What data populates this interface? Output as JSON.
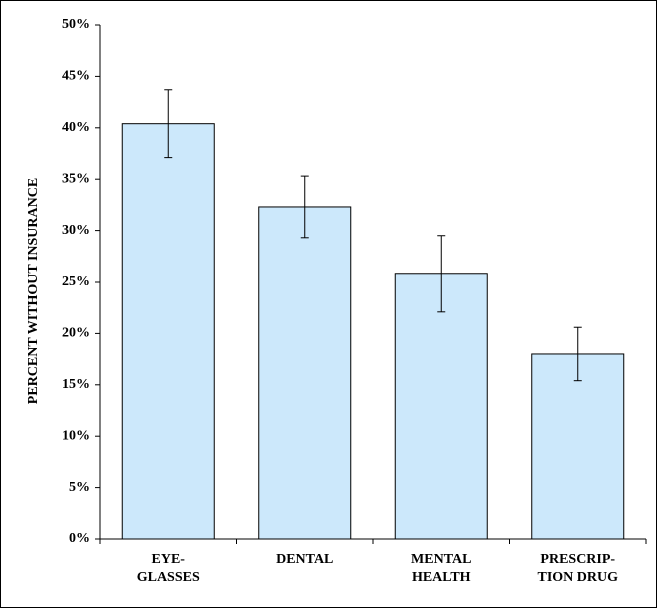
{
  "chart_data": {
    "type": "bar",
    "y_label": "PERCENT WITHOUT INSURANCE",
    "categories": [
      "EYE-\nGLASSES",
      "DENTAL",
      "MENTAL\nHEALTH",
      "PRESCRIP-\nTION DRUG"
    ],
    "values": [
      40.4,
      32.3,
      25.8,
      18.0
    ],
    "errors": [
      3.3,
      3.0,
      3.7,
      2.6
    ],
    "color": "#cce8fb",
    "ylim": [
      0,
      50
    ],
    "yticks": [
      {
        "value": 0,
        "label": "0%"
      },
      {
        "value": 5,
        "label": "5%"
      },
      {
        "value": 10,
        "label": "10%"
      },
      {
        "value": 15,
        "label": "15%"
      },
      {
        "value": 20,
        "label": "20%"
      },
      {
        "value": 25,
        "label": "25%"
      },
      {
        "value": 30,
        "label": "30%"
      },
      {
        "value": 35,
        "label": "35%"
      },
      {
        "value": 40,
        "label": "40%"
      },
      {
        "value": 45,
        "label": "45%"
      },
      {
        "value": 50,
        "label": "50%"
      }
    ]
  }
}
